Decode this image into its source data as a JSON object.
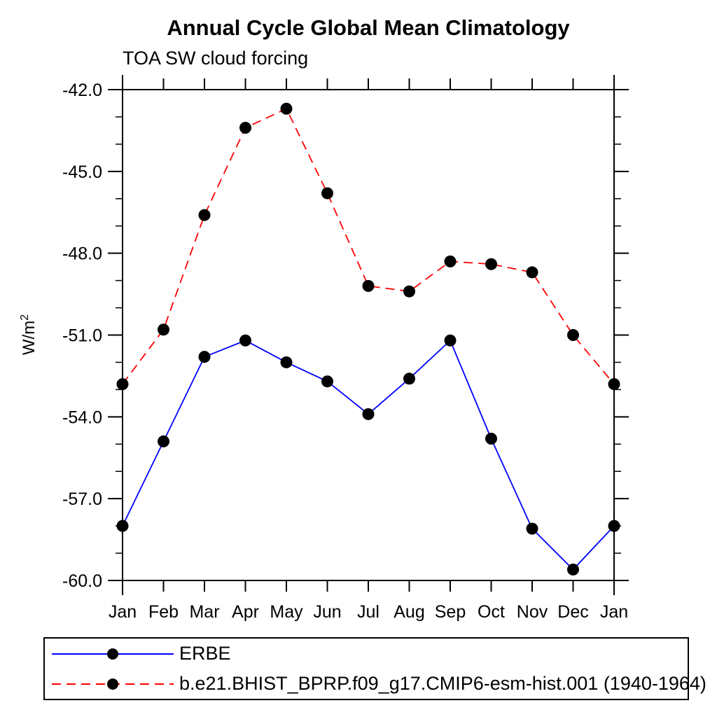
{
  "chart_data": {
    "type": "line",
    "title": "Annual Cycle Global Mean Climatology",
    "subtitle": "TOA SW cloud forcing",
    "ylabel": "W/m",
    "ylabel_superscript": "2",
    "x_tick_labels": [
      "Jan",
      "Feb",
      "Mar",
      "Apr",
      "May",
      "Jun",
      "Jul",
      "Aug",
      "Sep",
      "Oct",
      "Nov",
      "Dec",
      "Jan"
    ],
    "y_tick_labels": [
      "-42.0",
      "-45.0",
      "-48.0",
      "-51.0",
      "-54.0",
      "-57.0",
      "-60.0"
    ],
    "y_major_ticks": [
      -42,
      -45,
      -48,
      -51,
      -54,
      -57,
      -60
    ],
    "y_minor_step": 1,
    "ylim": [
      -60,
      -42
    ],
    "grid": false,
    "legend_position": "bottom",
    "axis_color": "#000000",
    "series": [
      {
        "name": "ERBE",
        "color": "#0000ff",
        "style": "solid",
        "marker": "filled-circle",
        "marker_color": "#000000",
        "values": [
          -58.0,
          -54.9,
          -51.8,
          -51.2,
          -52.0,
          -52.7,
          -53.9,
          -52.6,
          -51.2,
          -54.8,
          -58.1,
          -59.6,
          -58.0
        ]
      },
      {
        "name": "b.e21.BHIST_BPRP.f09_g17.CMIP6-esm-hist.001 (1940-1964)",
        "color": "#ff0000",
        "style": "dashed",
        "marker": "filled-circle",
        "marker_color": "#000000",
        "values": [
          -52.8,
          -50.8,
          -46.6,
          -43.4,
          -42.7,
          -45.8,
          -49.2,
          -49.4,
          -48.3,
          -48.4,
          -48.7,
          -51.0,
          -52.8
        ]
      }
    ]
  }
}
